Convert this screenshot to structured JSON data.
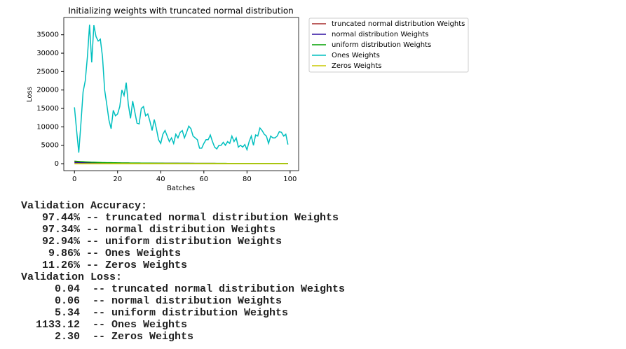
{
  "chart_data": {
    "type": "line",
    "title": "Initializing weights with truncated normal distribution",
    "x_label": "Batches",
    "y_label": "Loss",
    "x": [
      0,
      1,
      2,
      3,
      4,
      5,
      6,
      7,
      8,
      9,
      10,
      11,
      12,
      13,
      14,
      15,
      16,
      17,
      18,
      19,
      20,
      21,
      22,
      23,
      24,
      25,
      26,
      27,
      28,
      29,
      30,
      31,
      32,
      33,
      34,
      35,
      36,
      37,
      38,
      39,
      40,
      41,
      42,
      43,
      44,
      45,
      46,
      47,
      48,
      49,
      50,
      51,
      52,
      53,
      54,
      55,
      56,
      57,
      58,
      59,
      60,
      61,
      62,
      63,
      64,
      65,
      66,
      67,
      68,
      69,
      70,
      71,
      72,
      73,
      74,
      75,
      76,
      77,
      78,
      79,
      80,
      81,
      82,
      83,
      84,
      85,
      86,
      87,
      88,
      89,
      90,
      91,
      92,
      93,
      94,
      95,
      96,
      97,
      98,
      99
    ],
    "xlim": [
      -4.95,
      103.95
    ],
    "xticks": [
      0,
      20,
      40,
      60,
      80,
      100
    ],
    "ylim": [
      -1890,
      39690
    ],
    "yticks": [
      0,
      5000,
      10000,
      15000,
      20000,
      25000,
      30000,
      35000
    ],
    "grid": false,
    "legend": "outside upper right",
    "series": [
      {
        "name": "truncated normal distribution Weights",
        "color": "#a52a2a",
        "values": [
          550,
          480,
          430,
          400,
          380,
          360,
          340,
          320,
          300,
          290,
          280,
          270,
          260,
          250,
          240,
          230,
          220,
          210,
          200,
          195,
          190,
          185,
          180,
          175,
          170,
          165,
          160,
          155,
          150,
          145,
          140,
          135,
          130,
          125,
          120,
          118,
          116,
          114,
          112,
          110,
          108,
          106,
          104,
          102,
          100,
          98,
          96,
          94,
          92,
          90,
          88,
          86,
          84,
          82,
          80,
          79,
          78,
          77,
          76,
          75,
          74,
          73,
          72,
          71,
          70,
          69,
          68,
          67,
          66,
          65,
          64,
          63,
          62,
          61,
          60,
          59,
          58,
          57,
          56,
          55,
          54,
          53,
          52,
          51,
          50,
          50,
          50,
          50,
          50,
          50,
          50,
          50,
          50,
          50,
          50,
          50,
          50,
          50,
          50,
          50
        ]
      },
      {
        "name": "normal distribution Weights",
        "color": "#2e0fa0",
        "values": [
          280,
          270,
          260,
          250,
          240,
          230,
          220,
          210,
          200,
          195,
          190,
          185,
          180,
          175,
          170,
          165,
          160,
          155,
          150,
          145,
          140,
          135,
          130,
          125,
          120,
          118,
          116,
          114,
          112,
          110,
          108,
          106,
          104,
          102,
          100,
          98,
          96,
          94,
          92,
          90,
          88,
          86,
          84,
          82,
          80,
          79,
          78,
          77,
          76,
          75,
          74,
          73,
          72,
          71,
          70,
          69,
          68,
          67,
          66,
          65,
          64,
          63,
          62,
          61,
          60,
          59,
          58,
          57,
          56,
          55,
          54,
          53,
          52,
          51,
          50,
          50,
          50,
          50,
          50,
          50,
          50,
          50,
          50,
          50,
          50,
          50,
          50,
          50,
          50,
          50,
          50,
          50,
          50,
          50,
          50,
          50,
          50,
          50,
          50,
          50
        ]
      },
      {
        "name": "uniform distribution Weights",
        "color": "#00a000",
        "values": [
          700,
          650,
          600,
          560,
          520,
          490,
          460,
          430,
          400,
          380,
          360,
          340,
          320,
          300,
          290,
          280,
          270,
          260,
          250,
          240,
          230,
          220,
          210,
          200,
          195,
          190,
          185,
          180,
          175,
          170,
          165,
          160,
          155,
          150,
          145,
          140,
          135,
          130,
          125,
          120,
          118,
          116,
          114,
          112,
          110,
          108,
          106,
          104,
          102,
          100,
          98,
          96,
          94,
          92,
          90,
          88,
          86,
          84,
          82,
          80,
          79,
          78,
          77,
          76,
          75,
          74,
          73,
          72,
          71,
          70,
          69,
          68,
          67,
          66,
          65,
          64,
          63,
          62,
          61,
          60,
          59,
          58,
          57,
          56,
          55,
          54,
          53,
          52,
          51,
          50,
          50,
          50,
          50,
          50,
          50,
          50,
          50,
          50,
          50,
          50
        ]
      },
      {
        "name": "Ones Weights",
        "color": "#00bfbf",
        "values": [
          15300,
          9000,
          3000,
          11000,
          19500,
          22500,
          29000,
          37700,
          27500,
          37600,
          34500,
          33300,
          33800,
          29000,
          20000,
          16000,
          11800,
          9500,
          14500,
          13000,
          13500,
          15500,
          20000,
          18500,
          22000,
          16000,
          12300,
          17000,
          14000,
          11000,
          10800,
          15000,
          15500,
          13000,
          13500,
          11500,
          9000,
          12000,
          9500,
          6500,
          5500,
          8000,
          9000,
          7500,
          6000,
          7000,
          5500,
          8000,
          7000,
          8500,
          9000,
          7000,
          8500,
          10200,
          9500,
          7500,
          7000,
          6500,
          4200,
          4200,
          5500,
          6500,
          6500,
          7800,
          6000,
          4500,
          4000,
          5000,
          5000,
          5800,
          5000,
          6000,
          5500,
          7500,
          6000,
          7000,
          4500,
          5000,
          4500,
          5200,
          3800,
          6000,
          7500,
          5000,
          7800,
          7500,
          9700,
          9000,
          8000,
          7500,
          5500,
          7500,
          7000,
          7000,
          7500,
          8700,
          8500,
          7500,
          8000,
          5200
        ]
      },
      {
        "name": "Zeros Weights",
        "color": "#c8c800",
        "values": [
          2.3,
          2.3,
          2.3,
          2.3,
          2.3,
          2.3,
          2.3,
          2.3,
          2.3,
          2.3,
          2.3,
          2.3,
          2.3,
          2.3,
          2.3,
          2.3,
          2.3,
          2.3,
          2.3,
          2.3,
          2.3,
          2.3,
          2.3,
          2.3,
          2.3,
          2.3,
          2.3,
          2.3,
          2.3,
          2.3,
          2.3,
          2.3,
          2.3,
          2.3,
          2.3,
          2.3,
          2.3,
          2.3,
          2.3,
          2.3,
          2.3,
          2.3,
          2.3,
          2.3,
          2.3,
          2.3,
          2.3,
          2.3,
          2.3,
          2.3,
          2.3,
          2.3,
          2.3,
          2.3,
          2.3,
          2.3,
          2.3,
          2.3,
          2.3,
          2.3,
          2.3,
          2.3,
          2.3,
          2.3,
          2.3,
          2.3,
          2.3,
          2.3,
          2.3,
          2.3,
          2.3,
          2.3,
          2.3,
          2.3,
          2.3,
          2.3,
          2.3,
          2.3,
          2.3,
          2.3,
          2.3,
          2.3,
          2.3,
          2.3,
          2.3,
          2.3,
          2.3,
          2.3,
          2.3,
          2.3,
          2.3,
          2.3,
          2.3,
          2.3,
          2.3,
          2.3,
          2.3,
          2.3,
          2.3,
          2.3
        ]
      }
    ]
  },
  "output": {
    "accuracy": {
      "heading": "Validation Accuracy:",
      "rows": [
        {
          "value": "97.44%",
          "label": "-- truncated normal distribution Weights"
        },
        {
          "value": "97.34%",
          "label": "-- normal distribution Weights"
        },
        {
          "value": "92.94%",
          "label": "-- uniform distribution Weights"
        },
        {
          "value": "9.86%",
          "label": "-- Ones Weights"
        },
        {
          "value": "11.26%",
          "label": "-- Zeros Weights"
        }
      ]
    },
    "loss": {
      "heading": "Validation Loss:",
      "rows": [
        {
          "value": "0.04",
          "label": " -- truncated normal distribution Weights"
        },
        {
          "value": "0.06",
          "label": " -- normal distribution Weights"
        },
        {
          "value": "5.34",
          "label": " -- uniform distribution Weights"
        },
        {
          "value": "1133.12",
          "label": " -- Ones Weights"
        },
        {
          "value": "2.30",
          "label": " -- Zeros Weights"
        }
      ]
    }
  }
}
